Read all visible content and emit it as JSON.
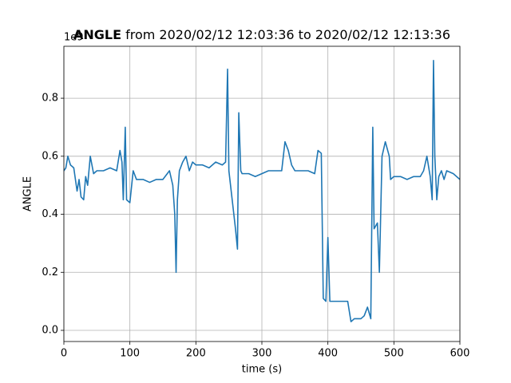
{
  "chart_data": {
    "type": "line",
    "title_bold": "ANGLE",
    "title": "from 2020/02/12 12:03:36 to 2020/02/12 12:13:36",
    "offset_text": "1e9",
    "x_label": "time (s)",
    "y_label": "ANGLE",
    "xlim": [
      0,
      600
    ],
    "ylim": [
      -0.0385,
      0.979
    ],
    "xticks": [
      0,
      100,
      200,
      300,
      400,
      500,
      600
    ],
    "yticks": [
      {
        "value": 0,
        "label": "0.0"
      },
      0.2,
      0.4,
      0.6,
      0.8
    ],
    "grid": true,
    "series": [
      {
        "color": "#1f77b4",
        "x": [
          0,
          3,
          6,
          10,
          15,
          20,
          23,
          26,
          30,
          33,
          36,
          40,
          45,
          50,
          60,
          70,
          80,
          85,
          88,
          90,
          93,
          95,
          100,
          105,
          110,
          120,
          130,
          140,
          150,
          160,
          165,
          168,
          170,
          172,
          175,
          180,
          185,
          190,
          195,
          200,
          210,
          220,
          230,
          240,
          245,
          248,
          250,
          255,
          260,
          263,
          265,
          268,
          270,
          280,
          290,
          300,
          310,
          320,
          330,
          335,
          340,
          345,
          350,
          360,
          370,
          380,
          385,
          390,
          393,
          397,
          400,
          403,
          410,
          420,
          430,
          435,
          440,
          450,
          455,
          460,
          465,
          468,
          470,
          475,
          478,
          482,
          487,
          493,
          495,
          500,
          510,
          520,
          530,
          540,
          545,
          550,
          555,
          558,
          560,
          562,
          565,
          568,
          572,
          576,
          580,
          590,
          600
        ],
        "values": [
          0.55,
          0.56,
          0.6,
          0.57,
          0.56,
          0.48,
          0.52,
          0.46,
          0.45,
          0.53,
          0.5,
          0.6,
          0.54,
          0.55,
          0.55,
          0.56,
          0.55,
          0.62,
          0.58,
          0.45,
          0.7,
          0.45,
          0.44,
          0.55,
          0.52,
          0.52,
          0.51,
          0.52,
          0.52,
          0.55,
          0.5,
          0.4,
          0.2,
          0.45,
          0.55,
          0.58,
          0.6,
          0.55,
          0.58,
          0.57,
          0.57,
          0.56,
          0.58,
          0.57,
          0.58,
          0.9,
          0.55,
          0.45,
          0.35,
          0.28,
          0.75,
          0.55,
          0.54,
          0.54,
          0.53,
          0.54,
          0.55,
          0.55,
          0.55,
          0.65,
          0.62,
          0.57,
          0.55,
          0.55,
          0.55,
          0.54,
          0.62,
          0.61,
          0.11,
          0.1,
          0.32,
          0.1,
          0.1,
          0.1,
          0.1,
          0.03,
          0.04,
          0.04,
          0.05,
          0.08,
          0.04,
          0.7,
          0.35,
          0.37,
          0.2,
          0.6,
          0.65,
          0.6,
          0.52,
          0.53,
          0.53,
          0.52,
          0.53,
          0.53,
          0.55,
          0.6,
          0.53,
          0.45,
          0.93,
          0.6,
          0.45,
          0.53,
          0.55,
          0.52,
          0.55,
          0.54,
          0.52
        ]
      }
    ]
  }
}
